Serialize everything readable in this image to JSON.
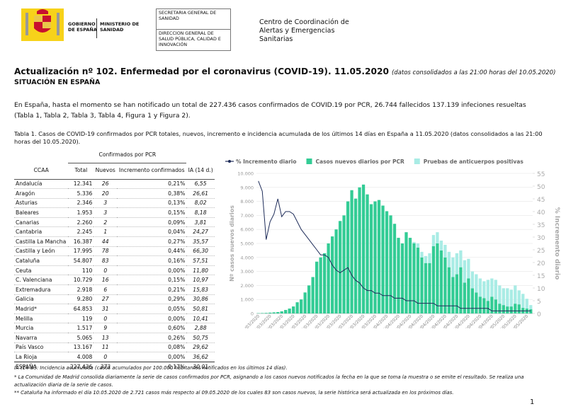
{
  "header": {
    "gobierno": "GOBIERNO DE ESPAÑA",
    "ministerio": "MINISTERIO DE SANIDAD",
    "secretaria": "SECRETARIA GENERAL DE SANIDAD",
    "direccion": "DIRECCION GENERAL DE SALUD PÚBLICA, CALIDAD E INNOVACIÓN",
    "centro": "Centro de Coordinación de Alertas y Emergencias Sanitarias"
  },
  "title": {
    "main": "Actualización nº 102. Enfermedad por el coronavirus (COVID-19). 11.05.2020",
    "note": "(datos consolidados a las 21:00 horas del 10.05.2020)"
  },
  "section": "SITUACIÓN EN ESPAÑA",
  "paragraph": "En España, hasta el momento se han notificado un total de 227.436 casos confirmados de COVID.19 por PCR, 26.744 fallecidos 137.139 infeciones resueltas (Tabla 1, Tabla 2, Tabla 3, Tabla 4, Figura 1 y Figura 2).",
  "table": {
    "caption": "Tabla 1. Casos de COVID-19 confirmados por PCR totales, nuevos, incremento e incidencia acumulada de los últimos 14 días en España a 11.05.2020 (datos consolidados a las 21:00 horas del 10.05.2020).",
    "group_header": "Confirmados por PCR",
    "columns": [
      "CCAA",
      "Total",
      "Nuevos",
      "Incremento confirmados",
      "IA (14 d.)"
    ],
    "rows": [
      [
        "Andalucía",
        "12.341",
        "26",
        "0,21%",
        "6,55"
      ],
      [
        "Aragón",
        "5.336",
        "20",
        "0,38%",
        "26,61"
      ],
      [
        "Asturias",
        "2.346",
        "3",
        "0,13%",
        "8,02"
      ],
      [
        "Baleares",
        "1.953",
        "3",
        "0,15%",
        "8,18"
      ],
      [
        "Canarias",
        "2.260",
        "2",
        "0,09%",
        "3,81"
      ],
      [
        "Cantabria",
        "2.245",
        "1",
        "0,04%",
        "24,27"
      ],
      [
        "Castilla La Mancha",
        "16.387",
        "44",
        "0,27%",
        "35,57"
      ],
      [
        "Castilla y León",
        "17.995",
        "78",
        "0,44%",
        "66,30"
      ],
      [
        "Cataluña",
        "54.807",
        "83",
        "0,16%",
        "57,51"
      ],
      [
        "Ceuta",
        "110",
        "0",
        "0,00%",
        "11,80"
      ],
      [
        "C. Valenciana",
        "10.729",
        "16",
        "0,15%",
        "10,97"
      ],
      [
        "Extremadura",
        "2.918",
        "6",
        "0,21%",
        "15,83"
      ],
      [
        "Galicia",
        "9.280",
        "27",
        "0,29%",
        "30,86"
      ],
      [
        "Madrid*",
        "64.853",
        "31",
        "0,05%",
        "50,81"
      ],
      [
        "Melilla",
        "119",
        "0",
        "0,00%",
        "10,41"
      ],
      [
        "Murcia",
        "1.517",
        "9",
        "0,60%",
        "2,88"
      ],
      [
        "Navarra",
        "5.065",
        "13",
        "0,26%",
        "50,75"
      ],
      [
        "País Vasco",
        "13.167",
        "11",
        "0,08%",
        "29,62"
      ],
      [
        "La Rioja",
        "4.008",
        "0",
        "0,00%",
        "36,62"
      ],
      [
        "ESPAÑA",
        "227.436",
        "373",
        "0,17%",
        "30,01"
      ]
    ]
  },
  "chart_data": {
    "type": "bar",
    "stacked": true,
    "grid": true,
    "legend": "top",
    "y_label": "Nº casos nuevos diarios",
    "y2_label": "% Incremento diario",
    "categories": [
      "01/03/2020",
      null,
      null,
      "04/03/2020",
      null,
      null,
      "07/03/2020",
      null,
      null,
      "10/03/2020",
      null,
      null,
      "13/03/2020",
      null,
      null,
      "16/03/2020",
      null,
      null,
      "19/03/2020",
      null,
      null,
      "22/03/2020",
      null,
      null,
      "25/03/2020",
      null,
      null,
      "28/03/2020",
      null,
      null,
      "31/03/2020",
      null,
      null,
      "03/04/2020",
      null,
      null,
      "06/04/2020",
      null,
      null,
      "09/04/2020",
      null,
      null,
      "12/04/2020",
      null,
      null,
      "15/04/2020",
      null,
      null,
      "18/04/2020",
      null,
      null,
      "21/04/2020",
      null,
      null,
      "24/04/2020",
      null,
      null,
      "27/04/2020",
      null,
      null,
      "30/04/2020",
      null,
      null,
      "03/05/2020",
      null,
      null,
      "06/05/2020",
      null,
      null,
      "09/05/2020",
      null
    ],
    "ylim": [
      0,
      10000
    ],
    "yticks": [
      0,
      {
        "value": 1000,
        "label": "1.000"
      },
      {
        "value": 2000,
        "label": "2.000"
      },
      {
        "value": 3000,
        "label": "3.000"
      },
      {
        "value": 4000,
        "label": "4.000"
      },
      {
        "value": 5000,
        "label": "5.000"
      },
      {
        "value": 6000,
        "label": "6.000"
      },
      {
        "value": 7000,
        "label": "7.000"
      },
      {
        "value": 8000,
        "label": "8.000"
      },
      {
        "value": 9000,
        "label": "9.000"
      },
      {
        "value": 10000,
        "label": "10.000"
      }
    ],
    "y2lim": [
      0,
      55
    ],
    "y2ticks": [
      0,
      5,
      10,
      15,
      20,
      25,
      30,
      35,
      40,
      45,
      50,
      55
    ],
    "series": [
      {
        "name": "% Incremento diario",
        "type": "line",
        "axis": "y2",
        "color": "#1f2d5a",
        "values": [
          52,
          48,
          29,
          36,
          39,
          45,
          38,
          40,
          40,
          39,
          36,
          33,
          31,
          29,
          27,
          25,
          23,
          23,
          22,
          19,
          17,
          16,
          17,
          18,
          15,
          13,
          12,
          10,
          9,
          9,
          8,
          8,
          7,
          7,
          7,
          6,
          6,
          6,
          5,
          5,
          5,
          4,
          4,
          4,
          4,
          4,
          3,
          3,
          3,
          3,
          3,
          3,
          2,
          2,
          2,
          2,
          2,
          2,
          2,
          2,
          1,
          1,
          1,
          1,
          1,
          1,
          1,
          1,
          1,
          1,
          1
        ]
      },
      {
        "name": "Casos nuevos diarios por PCR",
        "type": "bar",
        "color": "#33cc95",
        "values": [
          20,
          30,
          40,
          60,
          80,
          100,
          150,
          250,
          350,
          500,
          800,
          1000,
          1500,
          2000,
          2600,
          3700,
          4000,
          4300,
          5000,
          5500,
          6000,
          6600,
          7000,
          8000,
          8800,
          8200,
          9000,
          9200,
          8500,
          7800,
          8000,
          8100,
          7700,
          7300,
          7000,
          6400,
          5400,
          5000,
          5800,
          5400,
          5000,
          4700,
          4000,
          3600,
          3600,
          4800,
          5000,
          4500,
          4000,
          3300,
          2600,
          2800,
          3300,
          2200,
          2500,
          1800,
          1500,
          1200,
          1100,
          900,
          1200,
          1000,
          700,
          600,
          500,
          500,
          700,
          650,
          400,
          350,
          300
        ]
      },
      {
        "name": "Pruebas de anticuerpos positivas",
        "type": "bar",
        "color": "#a9ece5",
        "values": [
          0,
          0,
          0,
          0,
          0,
          0,
          0,
          0,
          0,
          0,
          0,
          0,
          0,
          0,
          0,
          0,
          0,
          0,
          0,
          0,
          0,
          0,
          0,
          0,
          0,
          0,
          0,
          0,
          0,
          0,
          0,
          0,
          0,
          0,
          0,
          0,
          0,
          0,
          0,
          0,
          100,
          300,
          400,
          500,
          700,
          800,
          800,
          700,
          900,
          1100,
          1400,
          1500,
          1200,
          1600,
          1400,
          1200,
          1300,
          1300,
          1200,
          1500,
          1300,
          1400,
          1300,
          1200,
          1300,
          1200,
          1300,
          1000,
          1000,
          700,
          300
        ]
      }
    ]
  },
  "footnotes": [
    "IA (14 d.): Incidencia acumulada (casos acumulados por 100.000 habitantes notificados en los últimos 14 días).",
    "* La Comunidad de Madrid consolida diariamente la serie de casos confirmados por PCR, asignando a los casos nuevos notificados la fecha en la que se toma la muestra o se emite el resultado. Se realiza una actualización diaria de la serie de casos.",
    "** Cataluña ha informado el día 10.05.2020 de 2.721 casos más respecto al 09.05.2020 de los cuales 83 son casos nuevos, la serie histórica será actualizada en los próximos días."
  ],
  "page_number": "1"
}
